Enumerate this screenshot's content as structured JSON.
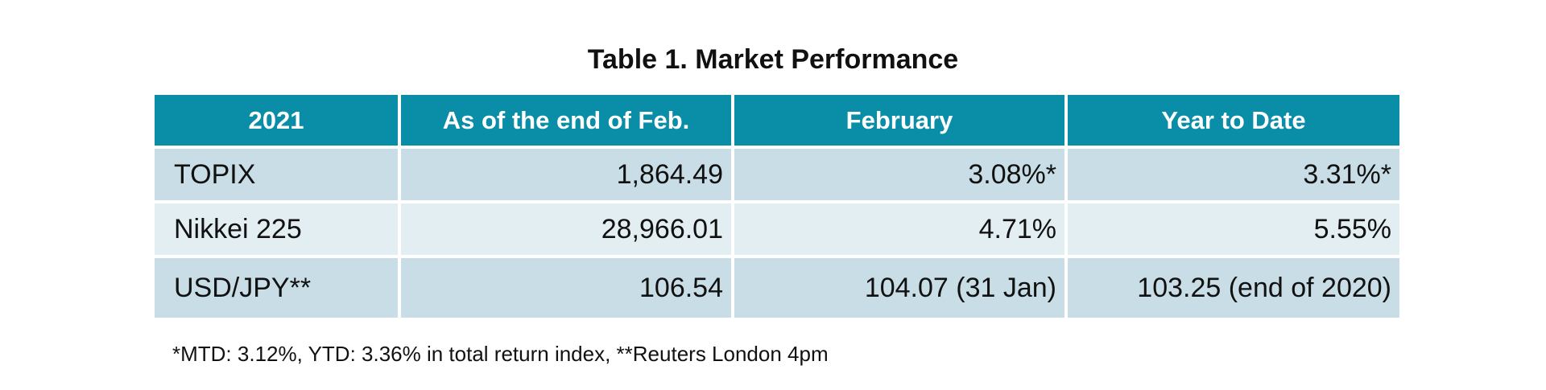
{
  "title": "Table 1. Market Performance",
  "table": {
    "headers": [
      "2021",
      "As of the end of Feb.",
      "February",
      "Year to Date"
    ],
    "rows": [
      [
        "TOPIX",
        "1,864.49",
        "3.08%*",
        "3.31%*"
      ],
      [
        "Nikkei 225",
        "28,966.01",
        "4.71%",
        "5.55%"
      ],
      [
        "USD/JPY**",
        "106.54",
        "104.07 (31 Jan)",
        "103.25 (end of 2020)"
      ]
    ]
  },
  "footnote": "*MTD: 3.12%, YTD: 3.36% in total return index, **Reuters London 4pm",
  "colors": {
    "header_bg": "#0a8ea8",
    "header_text": "#ffffff",
    "row_dark": "#c8dde5",
    "row_light": "#e2eef2"
  }
}
